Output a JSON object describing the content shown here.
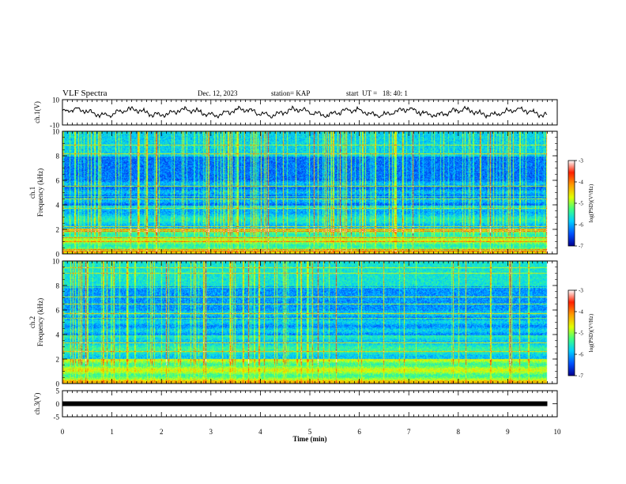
{
  "header": {
    "title": "VLF Spectra",
    "date": "Dec. 12, 2023",
    "station": "station= KAP",
    "start": "start  UT =   18: 40: 1"
  },
  "chart_data": [
    {
      "type": "line",
      "panel": "ch1-waveform",
      "ylabel": "ch.1(V)",
      "xlim": [
        0,
        9.8
      ],
      "ylim": [
        -10,
        10
      ],
      "yticks": [
        "10",
        "-10"
      ],
      "description_values": "noisy waveform fluctuating around about 0 V, amplitude roughly ±4 V"
    },
    {
      "type": "heatmap",
      "panel": "ch1-spectrogram",
      "ylabel": "ch.1\nFrequency (kHz)",
      "ylabel_lines": [
        "ch.1",
        "Frequency (kHz)"
      ],
      "xlim": [
        0,
        9.8
      ],
      "ylim": [
        0,
        10
      ],
      "yticks": [
        "0",
        "2",
        "4",
        "6",
        "8",
        "10"
      ],
      "colorbar": {
        "label": "log(PSD)(V²/Hz)",
        "range": [
          -7,
          -3
        ],
        "ticks": [
          "-3",
          "-4",
          "-5",
          "-6",
          "-7"
        ],
        "colors": [
          "#000090",
          "#0050ff",
          "#00d0ff",
          "#40ff80",
          "#e0ff00",
          "#ffa000",
          "#ff2000",
          "#ffffff"
        ]
      }
    },
    {
      "type": "heatmap",
      "panel": "ch2-spectrogram",
      "ylabel": "ch.2\nFrequency (kHz)",
      "ylabel_lines": [
        "ch.2",
        "Frequency (kHz)"
      ],
      "xlim": [
        0,
        9.8
      ],
      "ylim": [
        0,
        10
      ],
      "yticks": [
        "0",
        "2",
        "4",
        "6",
        "8",
        "10"
      ],
      "colorbar": {
        "label": "log(PSD)(V²/Hz)",
        "range": [
          -7,
          -3
        ],
        "ticks": [
          "-3",
          "-4",
          "-5",
          "-6",
          "-7"
        ],
        "colors": [
          "#000090",
          "#0050ff",
          "#00d0ff",
          "#40ff80",
          "#e0ff00",
          "#ffa000",
          "#ff2000",
          "#ffffff"
        ]
      }
    },
    {
      "type": "line",
      "panel": "ch3-waveform",
      "ylabel": "ch.3(V)",
      "xlim": [
        0,
        9.8
      ],
      "ylim": [
        -5,
        5
      ],
      "yticks": [
        "5",
        "0",
        "-5"
      ],
      "constant_value": 0,
      "description_values": "thick flat line at approximately 0 V"
    }
  ],
  "xaxis": {
    "label": "Time  (min)",
    "ticks": [
      "0",
      "1",
      "2",
      "3",
      "4",
      "5",
      "6",
      "7",
      "8",
      "9",
      "10"
    ],
    "range": [
      0,
      10
    ]
  }
}
